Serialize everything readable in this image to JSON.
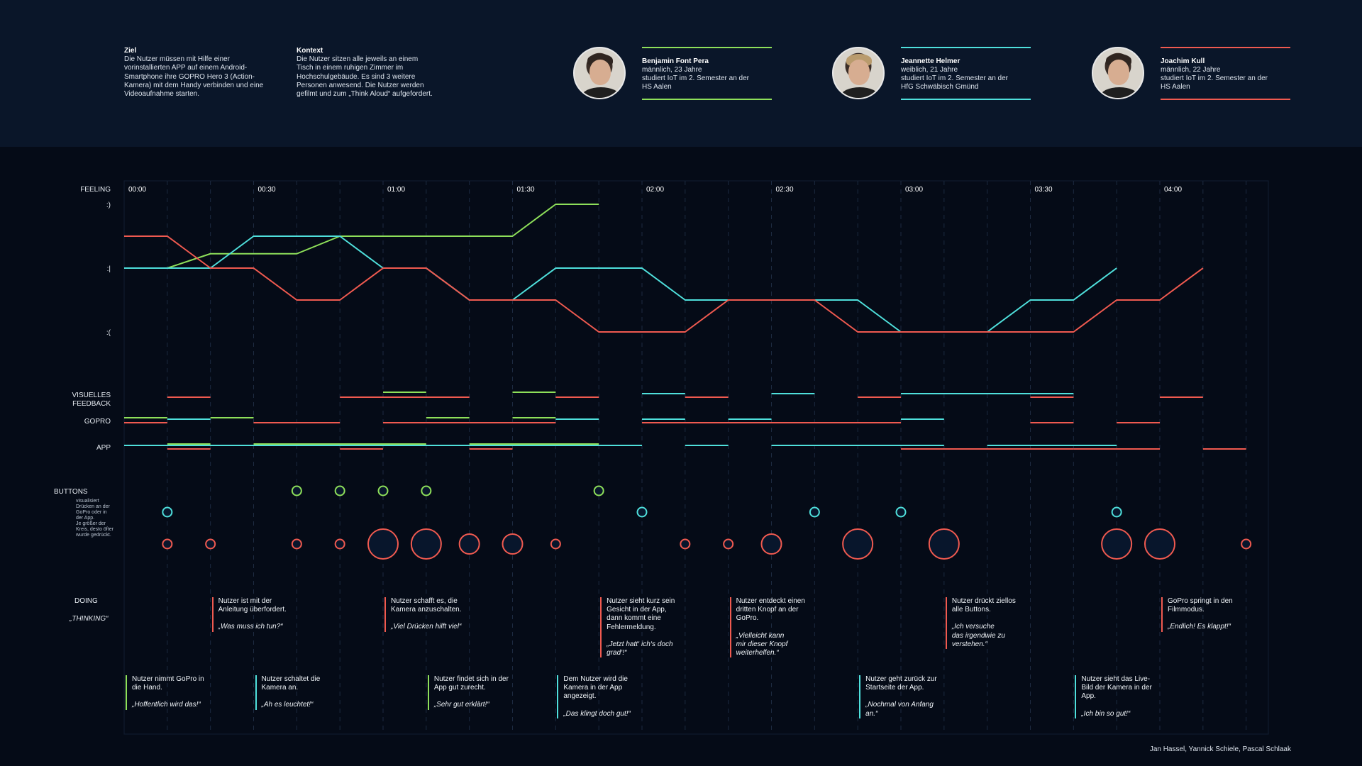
{
  "intro": {
    "goal_title": "Ziel",
    "goal_text": "Die Nutzer müssen mit Hilfe einer\nvorinstallierten APP auf einem Android-\nSmartphone ihre GOPRO Hero 3 (Action-\nKamera) mit dem Handy verbinden und eine\nVideoaufnahme starten.",
    "context_title": "Kontext",
    "context_text": "Die Nutzer sitzen alle jeweils an einem\nTisch in einem ruhigen Zimmer im\nHochschulgebäude. Es sind 3 weitere\nPersonen anwesend. Die Nutzer werden\ngefilmt und zum „Think Aloud“ aufgefordert."
  },
  "personas": [
    {
      "name": "Benjamin Font Pera",
      "desc": "männlich, 23 Jahre\nstudiert IoT im 2. Semester an der\nHS Aalen",
      "color": "#8ee05a"
    },
    {
      "name": "Jeannette Helmer",
      "desc": "weiblich, 21 Jahre\nstudiert IoT im 2. Semester an der\nHfG Schwäbisch Gmünd",
      "color": "#4fe0dc"
    },
    {
      "name": "Joachim Kull",
      "desc": "männlich, 22 Jahre\nstudiert IoT im 2. Semester an der\nHS Aalen",
      "color": "#f05a50"
    }
  ],
  "labels": {
    "feeling": "FEELING",
    "happy": ":)",
    "neutral": ":|",
    "sad": ":(",
    "visual_feedback": "VISUELLES\nFEEDBACK",
    "gopro": "GOPRO",
    "app": "APP",
    "buttons": "BUTTONS",
    "buttons_sub": "visualisiert\nDrücken an der\nGoPro oder in\nder App.\nJe größer der\nKreis, desto öfter\nwurde gedrückt.",
    "doing": "DOING",
    "thinking": "„THINKING“"
  },
  "time_ticks": [
    "00:00",
    "00:30",
    "01:00",
    "01:30",
    "02:00",
    "02:30",
    "03:00",
    "03:30",
    "04:00"
  ],
  "timeline": {
    "feeling_series": [
      {
        "persona": "Benjamin Font Pera",
        "color": "#8ee05a",
        "points": [
          [
            0,
            0
          ],
          [
            0.1667,
            0
          ],
          [
            0.3333,
            0.45
          ],
          [
            0.6667,
            0.45
          ],
          [
            0.8333,
            1
          ],
          [
            1.5,
            1
          ],
          [
            1.6667,
            2
          ],
          [
            1.8333,
            2
          ]
        ]
      },
      {
        "persona": "Jeannette Helmer",
        "color": "#4fe0dc",
        "points": [
          [
            0,
            0
          ],
          [
            0.3333,
            0
          ],
          [
            0.5,
            1
          ],
          [
            0.8333,
            1
          ],
          [
            1,
            0
          ],
          [
            1.1667,
            0
          ],
          [
            1.3333,
            -1
          ],
          [
            1.5,
            -1
          ],
          [
            1.6667,
            0
          ],
          [
            2,
            0
          ],
          [
            2.1667,
            -1
          ],
          [
            2.8333,
            -1
          ],
          [
            3,
            -2
          ],
          [
            3.3333,
            -2
          ],
          [
            3.5,
            -1
          ],
          [
            3.6667,
            -1
          ],
          [
            3.8333,
            0
          ]
        ]
      },
      {
        "persona": "Joachim Kull",
        "color": "#f05a50",
        "points": [
          [
            0,
            1
          ],
          [
            0.1667,
            1
          ],
          [
            0.3333,
            0
          ],
          [
            0.5,
            0
          ],
          [
            0.6667,
            -1
          ],
          [
            0.8333,
            -1
          ],
          [
            1,
            0
          ],
          [
            1.1667,
            0
          ],
          [
            1.3333,
            -1
          ],
          [
            1.6667,
            -1
          ],
          [
            1.8333,
            -2
          ],
          [
            2.1667,
            -2
          ],
          [
            2.3333,
            -1
          ],
          [
            2.6667,
            -1
          ],
          [
            2.8333,
            -2
          ],
          [
            3.6667,
            -2
          ],
          [
            3.8333,
            -1
          ],
          [
            4,
            -1
          ],
          [
            4.1667,
            0
          ]
        ]
      }
    ],
    "visual_feedback": [
      {
        "persona": "Benjamin Font Pera",
        "color": "#8ee05a",
        "segments": [
          [
            1,
            1.1667
          ],
          [
            1.5,
            1.6667
          ]
        ]
      },
      {
        "persona": "Jeannette Helmer",
        "color": "#4fe0dc",
        "segments": [
          [
            2,
            2.1667
          ],
          [
            2.5,
            2.6667
          ],
          [
            3,
            3.6667
          ]
        ]
      },
      {
        "persona": "Joachim Kull",
        "color": "#f05a50",
        "segments": [
          [
            0.1667,
            0.3333
          ],
          [
            0.8333,
            1.3333
          ],
          [
            1.6667,
            1.8333
          ],
          [
            2.1667,
            2.3333
          ],
          [
            2.8333,
            3
          ],
          [
            3.5,
            3.6667
          ],
          [
            4,
            4.1667
          ]
        ]
      }
    ],
    "gopro": [
      {
        "persona": "Benjamin Font Pera",
        "color": "#8ee05a",
        "segments": [
          [
            0,
            0.1667
          ],
          [
            0.3333,
            0.5
          ],
          [
            1.1667,
            1.3333
          ],
          [
            1.5,
            1.6667
          ]
        ]
      },
      {
        "persona": "Jeannette Helmer",
        "color": "#4fe0dc",
        "segments": [
          [
            0.1667,
            0.3333
          ],
          [
            1.6667,
            1.8333
          ],
          [
            2,
            2.1667
          ],
          [
            2.3333,
            2.5
          ],
          [
            3,
            3.1667
          ]
        ]
      },
      {
        "persona": "Joachim Kull",
        "color": "#f05a50",
        "segments": [
          [
            0,
            0.1667
          ],
          [
            0.5,
            0.8333
          ],
          [
            1,
            1.1667
          ],
          [
            1.1667,
            1.3333
          ],
          [
            1.3333,
            1.6667
          ],
          [
            2,
            3
          ],
          [
            3.5,
            3.6667
          ],
          [
            3.8333,
            4
          ]
        ]
      }
    ],
    "app": [
      {
        "persona": "Benjamin Font Pera",
        "color": "#8ee05a",
        "segments": [
          [
            0.1667,
            0.3333
          ],
          [
            0.5,
            1.1667
          ],
          [
            1.3333,
            1.8333
          ]
        ]
      },
      {
        "persona": "Jeannette Helmer",
        "color": "#4fe0dc",
        "segments": [
          [
            0,
            1.8333
          ],
          [
            1.8333,
            2
          ],
          [
            2.1667,
            2.3333
          ],
          [
            2.5,
            3.1667
          ],
          [
            3.3333,
            3.8333
          ]
        ]
      },
      {
        "persona": "Joachim Kull",
        "color": "#f05a50",
        "segments": [
          [
            0.1667,
            0.3333
          ],
          [
            0.8333,
            1
          ],
          [
            1.3333,
            1.5
          ],
          [
            3,
            3.6667
          ],
          [
            3.6667,
            4
          ],
          [
            4.1667,
            4.3333
          ]
        ]
      }
    ],
    "buttons": [
      {
        "persona": "Benjamin Font Pera",
        "color": "#8ee05a",
        "presses": [
          [
            0.6667,
            1
          ],
          [
            0.8333,
            1
          ],
          [
            1,
            1
          ],
          [
            1.1667,
            1
          ],
          [
            1.8333,
            1
          ]
        ]
      },
      {
        "persona": "Jeannette Helmer",
        "color": "#4fe0dc",
        "presses": [
          [
            0.1667,
            1
          ],
          [
            2,
            1
          ],
          [
            2.6667,
            1
          ],
          [
            3,
            1
          ],
          [
            3.8333,
            1
          ]
        ]
      },
      {
        "persona": "Joachim Kull",
        "color": "#f05a50",
        "presses": [
          [
            0.1667,
            1
          ],
          [
            0.3333,
            1
          ],
          [
            0.6667,
            1
          ],
          [
            0.8333,
            1
          ],
          [
            1,
            3
          ],
          [
            1.1667,
            3
          ],
          [
            1.3333,
            2
          ],
          [
            1.5,
            2
          ],
          [
            1.6667,
            1
          ],
          [
            2.1667,
            1
          ],
          [
            2.3333,
            1
          ],
          [
            2.5,
            2
          ],
          [
            2.8333,
            3
          ],
          [
            3.1667,
            3
          ],
          [
            3.8333,
            3
          ],
          [
            4,
            3
          ],
          [
            4.3333,
            1
          ]
        ]
      }
    ]
  },
  "notes_top": [
    {
      "persona": "Joachim Kull",
      "color": "#f05a50",
      "time": 0.3333,
      "doing": "Nutzer ist mit der\nAnleitung überfordert.",
      "thinking": "„Was muss ich tun?“"
    },
    {
      "persona": "Joachim Kull",
      "color": "#f05a50",
      "time": 1,
      "doing": "Nutzer schafft es, die\nKamera anzuschalten.",
      "thinking": "„Viel Drücken hilft viel“"
    },
    {
      "persona": "Joachim Kull",
      "color": "#f05a50",
      "time": 1.8333,
      "doing": "Nutzer sieht kurz sein\nGesicht in der App,\ndann kommt eine\nFehlermeldung.",
      "thinking": "„Jetzt hatt‘ ich‘s doch\ngrad‘!“"
    },
    {
      "persona": "Joachim Kull",
      "color": "#f05a50",
      "time": 2.3333,
      "doing": "Nutzer entdeckt einen\ndritten Knopf an der\nGoPro.",
      "thinking": "„Vielleicht kann\nmir dieser Knopf\nweiterhelfen.“"
    },
    {
      "persona": "Joachim Kull",
      "color": "#f05a50",
      "time": 3.1667,
      "doing": "Nutzer drückt ziellos\nalle Buttons.",
      "thinking": "„Ich versuche\ndas irgendwie zu\nverstehen.“"
    },
    {
      "persona": "Joachim Kull",
      "color": "#f05a50",
      "time": 4,
      "doing": "GoPro springt in den\nFilmmodus.",
      "thinking": "„Endlich! Es klappt!“"
    }
  ],
  "notes_bottom": [
    {
      "persona": "Benjamin Font Pera",
      "color": "#8ee05a",
      "time": 0,
      "doing": "Nutzer nimmt GoPro in\ndie Hand.",
      "thinking": "„Hoffentlich wird das!“"
    },
    {
      "persona": "Jeannette Helmer",
      "color": "#4fe0dc",
      "time": 0.5,
      "doing": "Nutzer schaltet die\nKamera an.",
      "thinking": "„Ah es leuchtet!“"
    },
    {
      "persona": "Benjamin Font Pera",
      "color": "#8ee05a",
      "time": 1.1667,
      "doing": "Nutzer findet sich in der\nApp gut zurecht.",
      "thinking": "„Sehr gut erklärt!“"
    },
    {
      "persona": "Jeannette Helmer",
      "color": "#4fe0dc",
      "time": 1.6667,
      "doing": "Dem Nutzer wird die\nKamera in der App\nangezeigt.",
      "thinking": "„Das klingt doch gut!“"
    },
    {
      "persona": "Jeannette Helmer",
      "color": "#4fe0dc",
      "time": 2.8333,
      "doing": "Nutzer geht zurück zur\nStartseite der App.",
      "thinking": "„Nochmal von Anfang\nan.“"
    },
    {
      "persona": "Jeannette Helmer",
      "color": "#4fe0dc",
      "time": 3.6667,
      "doing": "Nutzer sieht das Live-\nBild der Kamera in der\nApp.",
      "thinking": "„Ich bin so gut!“"
    }
  ],
  "footer": {
    "credit": "Jan Hassel, Yannick Schiele, Pascal Schlaak"
  }
}
